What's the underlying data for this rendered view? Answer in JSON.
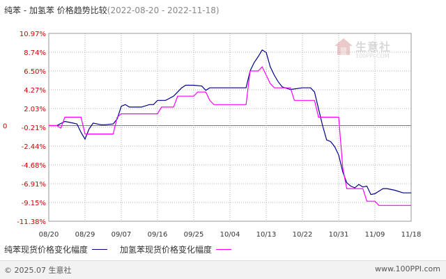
{
  "title": {
    "main": "纯苯 - 加氢苯 价格趋势比较",
    "dates": "(2022-08-20 - 2022-11-18)"
  },
  "watermark": {
    "name": "生意社",
    "url": "100PPI.COM"
  },
  "footer": {
    "copyright": "© 2025.07 生意社",
    "url": "www.100PPI.com"
  },
  "colors": {
    "series1": "#00008b",
    "series2": "#ff00ff",
    "ytick": "#cc0000",
    "grid": "#b0b0b0",
    "zero": "#777777"
  },
  "chart_data": {
    "type": "line",
    "ylim": [
      -11.38,
      10.97
    ],
    "yticks": [
      10.97,
      8.74,
      6.5,
      4.27,
      2.03,
      -0.21,
      -2.44,
      -4.68,
      -6.91,
      -9.15,
      -11.38
    ],
    "ytick_labels": [
      "10.97%",
      "8.74%",
      "6.50%",
      "4.27%",
      "2.03%",
      "-0.21%",
      "-2.44%",
      "-4.68%",
      "-6.91%",
      "-9.15%",
      "-11.38%"
    ],
    "zero_label": "0",
    "xticks": [
      "2022-08-20",
      "2022-08-29",
      "2022-09-07",
      "2022-09-16",
      "2022-09-25",
      "2022-10-04",
      "2022-10-13",
      "2022-10-22",
      "2022-10-31",
      "2022-11-09",
      "2022-11-18"
    ],
    "xtick_labels": [
      "08/20",
      "08/29",
      "09/07",
      "09/16",
      "09/25",
      "10/04",
      "10/13",
      "10/22",
      "10/31",
      "11/09",
      "11/18"
    ],
    "xlim": [
      "2022-08-20",
      "2022-11-18"
    ],
    "grid": true,
    "legend_position": "bottom",
    "series": [
      {
        "name": "纯苯现货价格变化幅度",
        "color": "#00008b",
        "points": [
          [
            "2022-08-20",
            0.0
          ],
          [
            "2022-08-22",
            0.0
          ],
          [
            "2022-08-24",
            0.5
          ],
          [
            "2022-08-26",
            0.3
          ],
          [
            "2022-08-27",
            0.2
          ],
          [
            "2022-08-28",
            -0.8
          ],
          [
            "2022-08-29",
            -1.6
          ],
          [
            "2022-08-30",
            -0.4
          ],
          [
            "2022-08-31",
            0.3
          ],
          [
            "2022-09-02",
            0.1
          ],
          [
            "2022-09-03",
            0.1
          ],
          [
            "2022-09-05",
            0.2
          ],
          [
            "2022-09-06",
            0.8
          ],
          [
            "2022-09-07",
            2.3
          ],
          [
            "2022-09-08",
            2.5
          ],
          [
            "2022-09-09",
            2.2
          ],
          [
            "2022-09-12",
            2.2
          ],
          [
            "2022-09-14",
            2.5
          ],
          [
            "2022-09-15",
            2.5
          ],
          [
            "2022-09-16",
            3.0
          ],
          [
            "2022-09-18",
            3.0
          ],
          [
            "2022-09-20",
            3.5
          ],
          [
            "2022-09-21",
            4.0
          ],
          [
            "2022-09-22",
            4.5
          ],
          [
            "2022-09-23",
            4.8
          ],
          [
            "2022-09-25",
            4.8
          ],
          [
            "2022-09-27",
            4.7
          ],
          [
            "2022-09-28",
            4.2
          ],
          [
            "2022-09-29",
            4.5
          ],
          [
            "2022-10-02",
            4.5
          ],
          [
            "2022-10-04",
            4.5
          ],
          [
            "2022-10-08",
            4.5
          ],
          [
            "2022-10-09",
            6.5
          ],
          [
            "2022-10-10",
            7.5
          ],
          [
            "2022-10-11",
            8.2
          ],
          [
            "2022-10-12",
            9.0
          ],
          [
            "2022-10-13",
            8.7
          ],
          [
            "2022-10-14",
            7.0
          ],
          [
            "2022-10-15",
            6.0
          ],
          [
            "2022-10-16",
            5.2
          ],
          [
            "2022-10-17",
            4.6
          ],
          [
            "2022-10-19",
            4.3
          ],
          [
            "2022-10-22",
            4.5
          ],
          [
            "2022-10-24",
            4.5
          ],
          [
            "2022-10-25",
            4.0
          ],
          [
            "2022-10-26",
            2.0
          ],
          [
            "2022-10-27",
            0.0
          ],
          [
            "2022-10-28",
            -1.7
          ],
          [
            "2022-10-29",
            -1.9
          ],
          [
            "2022-10-30",
            -2.5
          ],
          [
            "2022-10-31",
            -3.5
          ],
          [
            "2022-11-01",
            -5.5
          ],
          [
            "2022-11-02",
            -6.8
          ],
          [
            "2022-11-03",
            -7.2
          ],
          [
            "2022-11-04",
            -7.4
          ],
          [
            "2022-11-05",
            -7.0
          ],
          [
            "2022-11-06",
            -7.3
          ],
          [
            "2022-11-07",
            -7.2
          ],
          [
            "2022-11-08",
            -8.2
          ],
          [
            "2022-11-09",
            -8.1
          ],
          [
            "2022-11-10",
            -7.8
          ],
          [
            "2022-11-11",
            -7.5
          ],
          [
            "2022-11-12",
            -7.5
          ],
          [
            "2022-11-14",
            -7.7
          ],
          [
            "2022-11-16",
            -8.0
          ],
          [
            "2022-11-18",
            -8.0
          ]
        ]
      },
      {
        "name": "加氢苯现货价格变化幅度",
        "color": "#ff00ff",
        "points": [
          [
            "2022-08-20",
            0.0
          ],
          [
            "2022-08-22",
            0.0
          ],
          [
            "2022-08-23",
            -0.3
          ],
          [
            "2022-08-24",
            1.0
          ],
          [
            "2022-08-28",
            1.0
          ],
          [
            "2022-08-29",
            -1.0
          ],
          [
            "2022-09-05",
            -1.0
          ],
          [
            "2022-09-06",
            1.0
          ],
          [
            "2022-09-07",
            1.4
          ],
          [
            "2022-09-16",
            1.4
          ],
          [
            "2022-09-17",
            2.2
          ],
          [
            "2022-09-20",
            2.2
          ],
          [
            "2022-09-21",
            3.5
          ],
          [
            "2022-09-25",
            3.5
          ],
          [
            "2022-09-26",
            4.0
          ],
          [
            "2022-09-28",
            4.0
          ],
          [
            "2022-09-29",
            3.0
          ],
          [
            "2022-09-30",
            2.5
          ],
          [
            "2022-10-08",
            2.5
          ],
          [
            "2022-10-09",
            6.5
          ],
          [
            "2022-10-11",
            6.5
          ],
          [
            "2022-10-12",
            7.0
          ],
          [
            "2022-10-14",
            5.0
          ],
          [
            "2022-10-15",
            4.5
          ],
          [
            "2022-10-19",
            4.5
          ],
          [
            "2022-10-20",
            3.0
          ],
          [
            "2022-10-25",
            3.0
          ],
          [
            "2022-10-26",
            1.0
          ],
          [
            "2022-10-31",
            1.0
          ],
          [
            "2022-11-01",
            -5.0
          ],
          [
            "2022-11-02",
            -7.5
          ],
          [
            "2022-11-06",
            -7.5
          ],
          [
            "2022-11-07",
            -9.0
          ],
          [
            "2022-11-09",
            -9.0
          ],
          [
            "2022-11-10",
            -9.5
          ],
          [
            "2022-11-18",
            -9.5
          ]
        ]
      }
    ]
  }
}
